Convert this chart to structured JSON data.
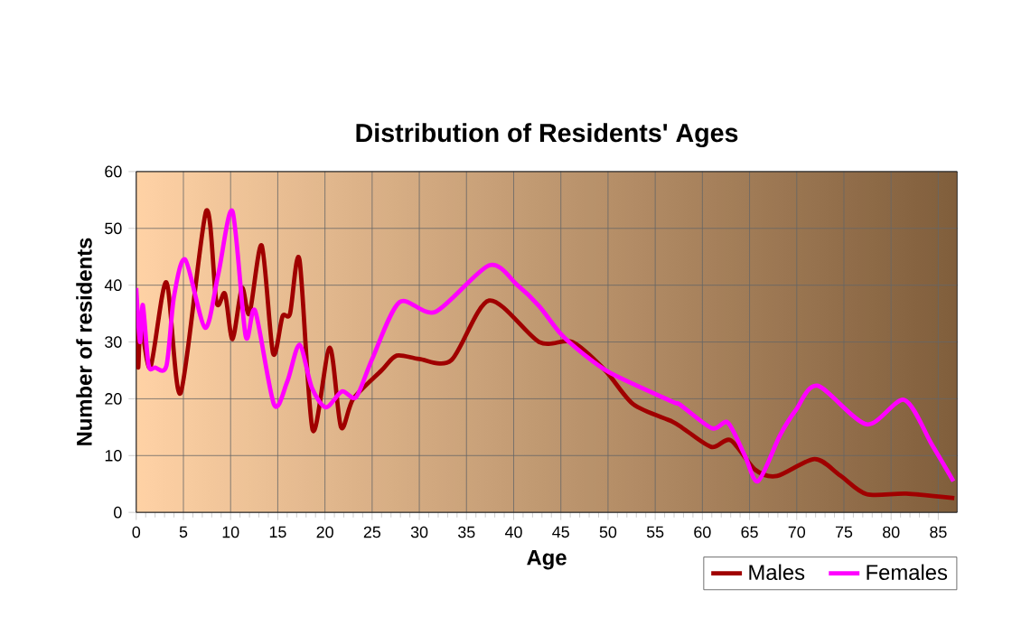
{
  "chart_data": {
    "type": "line",
    "title": "Distribution of Residents' Ages",
    "xlabel": "Age",
    "ylabel": "Number of residents",
    "xlim": [
      0,
      87
    ],
    "xticks": [
      0,
      5,
      10,
      15,
      20,
      25,
      30,
      35,
      40,
      45,
      50,
      55,
      60,
      65,
      70,
      75,
      80,
      85
    ],
    "ylim": [
      0,
      60
    ],
    "yticks": [
      0,
      10,
      20,
      30,
      40,
      50,
      60
    ],
    "grid": true,
    "legend": "bottom right",
    "marker": "none",
    "line_style": "solid",
    "series": [
      {
        "name": "Males",
        "color": "#a00000",
        "x": [
          0,
          0.2,
          0.5,
          1.5,
          3.2,
          4.7,
          7.4,
          8.5,
          9.4,
          10.2,
          11.2,
          12,
          13.3,
          14.5,
          15.5,
          16.3,
          17.3,
          18.7,
          20.5,
          21.7,
          23,
          26,
          27.6,
          30,
          33.4,
          37.4,
          42.7,
          46.2,
          49.7,
          52.7,
          56.8,
          58.2,
          61,
          63,
          65.6,
          67.9,
          71.9,
          74.6,
          77.4,
          81.6,
          86.7
        ],
        "values": [
          35.5,
          25.5,
          33,
          25.5,
          40.5,
          21,
          53,
          37,
          38.5,
          30.5,
          39.5,
          35,
          47,
          28,
          34.5,
          35,
          44.5,
          14.5,
          29,
          15,
          20,
          25,
          27.6,
          27,
          26.8,
          37.3,
          30,
          30,
          25,
          19,
          16,
          14.5,
          11.5,
          12.7,
          7.5,
          6.4,
          9.4,
          6.5,
          3.2,
          3.3,
          2.5
        ]
      },
      {
        "name": "Females",
        "color": "#ff00ff",
        "x": [
          0,
          0.4,
          0.7,
          1.3,
          2,
          3.2,
          4,
          5.2,
          7.3,
          8.7,
          10.2,
          11.6,
          12.6,
          14.6,
          16,
          17.3,
          18.6,
          20.1,
          21.8,
          23.3,
          25,
          27.9,
          31.7,
          37.4,
          40.4,
          42.7,
          45,
          47.3,
          50.3,
          56.8,
          57.6,
          61,
          62.7,
          64.5,
          65.9,
          68.2,
          69.9,
          72.2,
          77.4,
          81.4,
          84.3,
          86.6
        ],
        "values": [
          39.5,
          30,
          36.5,
          26,
          25.5,
          25.8,
          38,
          44.5,
          32.5,
          42,
          53,
          31,
          35.5,
          19,
          23,
          29.5,
          22,
          18.5,
          21.3,
          20.3,
          27,
          37,
          35.3,
          43.5,
          40,
          36.3,
          31.4,
          28,
          24.5,
          19.5,
          19,
          14.8,
          15.8,
          10,
          5.5,
          13.5,
          18,
          22.3,
          15.5,
          19.8,
          12,
          5.5
        ]
      }
    ]
  }
}
